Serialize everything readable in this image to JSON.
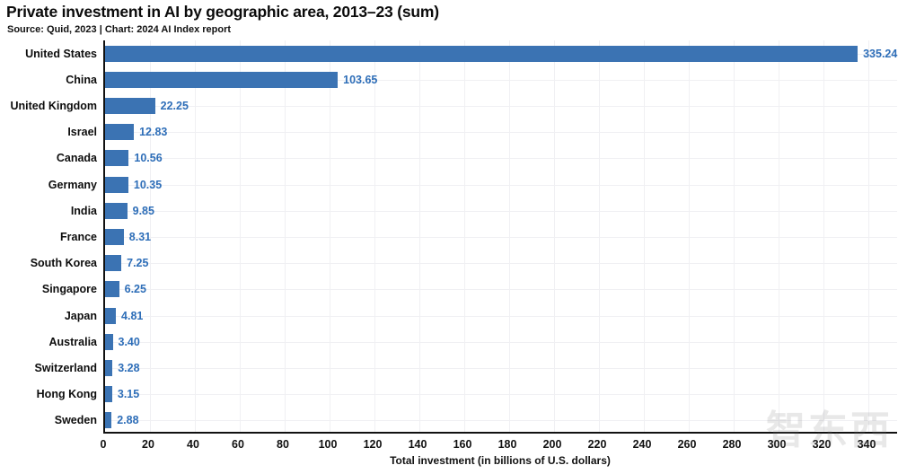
{
  "header": {
    "title": "Private investment in AI by geographic area, 2013–23 (sum)",
    "subtitle": "Source: Quid, 2023 | Chart: 2024 AI Index report"
  },
  "chart_data": {
    "type": "bar",
    "orientation": "horizontal",
    "title": "Private investment in AI by geographic area, 2013–23 (sum)",
    "subtitle": "Source: Quid, 2023 | Chart: 2024 AI Index report",
    "categories": [
      "United States",
      "China",
      "United Kingdom",
      "Israel",
      "Canada",
      "Germany",
      "India",
      "France",
      "South Korea",
      "Singapore",
      "Japan",
      "Australia",
      "Switzerland",
      "Hong Kong",
      "Sweden"
    ],
    "values": [
      335.24,
      103.65,
      22.25,
      12.83,
      10.56,
      10.35,
      9.85,
      8.31,
      7.25,
      6.25,
      4.81,
      3.4,
      3.28,
      3.15,
      2.88
    ],
    "value_labels": [
      "335.24",
      "103.65",
      "22.25",
      "12.83",
      "10.56",
      "10.35",
      "9.85",
      "8.31",
      "7.25",
      "6.25",
      "4.81",
      "3.40",
      "3.28",
      "3.15",
      "2.88"
    ],
    "xlabel": "Total investment (in billions of U.S. dollars)",
    "ylabel": "",
    "xlim": [
      0,
      340
    ],
    "xticks": [
      0,
      20,
      40,
      60,
      80,
      100,
      120,
      140,
      160,
      180,
      200,
      220,
      240,
      260,
      280,
      300,
      320,
      340
    ],
    "grid": true,
    "legend": "none",
    "bar_color": "#3b73b3",
    "value_label_color": "#2e6eb8",
    "gridline_color": "#f0f0f3",
    "axis_color": "#111111"
  },
  "watermark": {
    "text": "智东西"
  }
}
